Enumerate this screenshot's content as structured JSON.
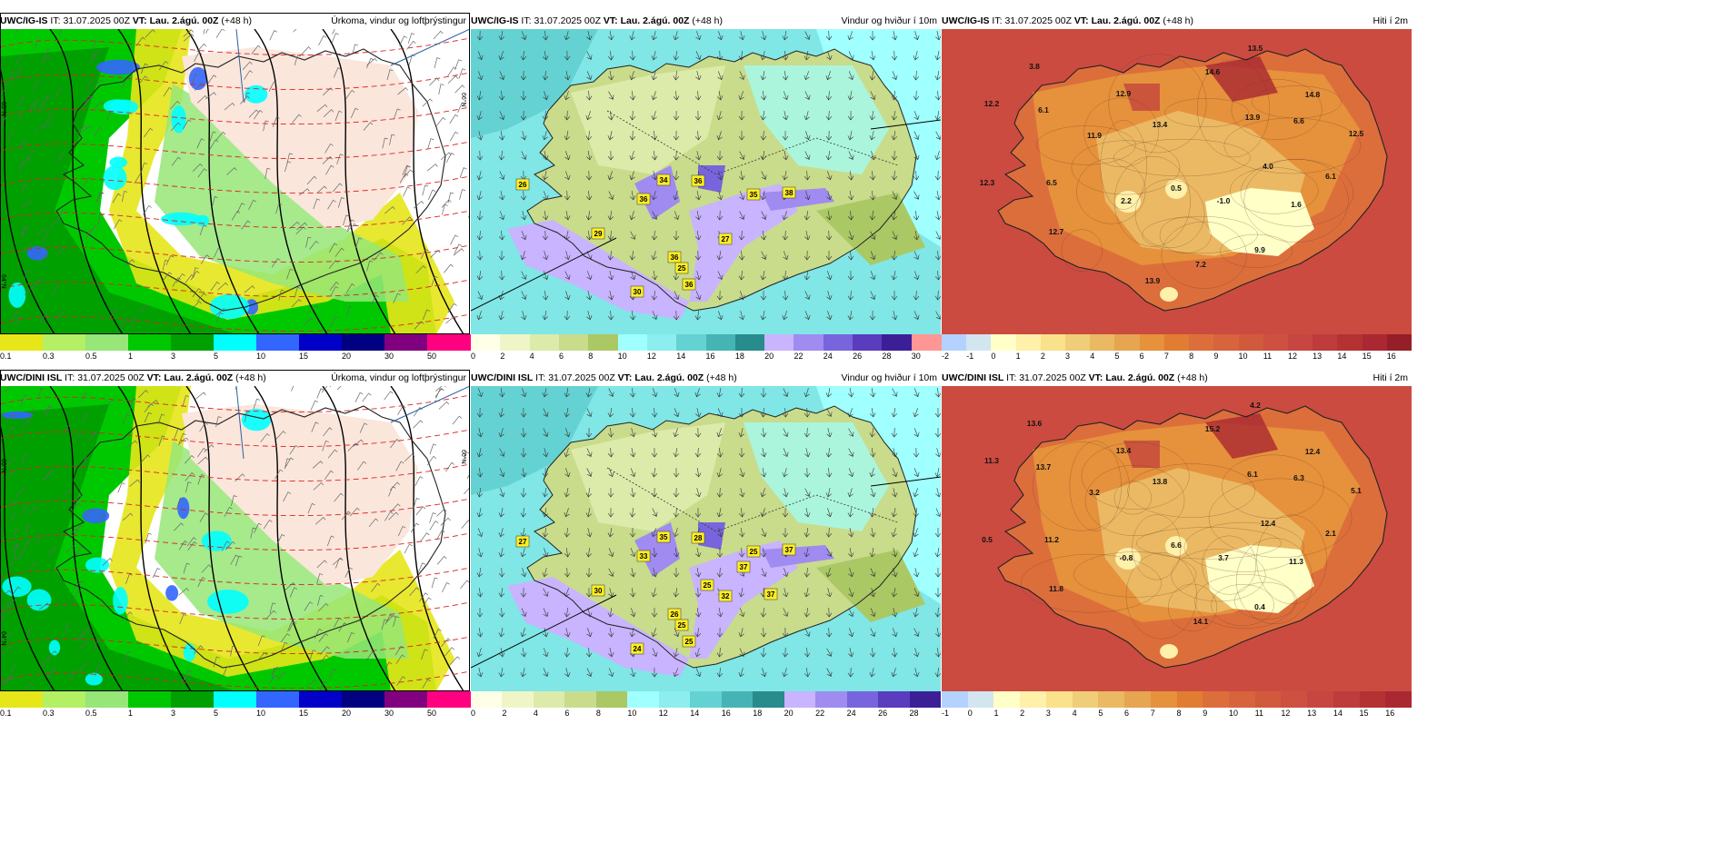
{
  "panels": [
    {
      "model": "UWC/IG-IS",
      "it_label": "IT:",
      "it_value": "31.07.2025 00Z",
      "vt_label": "VT:",
      "vt_value": "Lau. 2.ágú. 00Z",
      "lead": "(+48 h)",
      "title": "Úrkoma, vindur og loftþrýstingur",
      "kind": "precip",
      "colorbar": [
        "0.1",
        "0.3",
        "0.5",
        "1",
        "3",
        "5",
        "10",
        "15",
        "20",
        "30",
        "50"
      ],
      "labels": [],
      "lat_labels": [
        "65°N",
        "64°N",
        "66°N"
      ]
    },
    {
      "model": "UWC/IG-IS",
      "it_label": "IT:",
      "it_value": "31.07.2025 00Z",
      "vt_label": "VT:",
      "vt_value": "Lau. 2.ágú. 00Z",
      "lead": "(+48 h)",
      "title": "Vindur og hviður í 10m",
      "kind": "wind",
      "colorbar": [
        "0",
        "2",
        "4",
        "6",
        "8",
        "10",
        "12",
        "14",
        "16",
        "18",
        "20",
        "22",
        "24",
        "26",
        "28",
        "30"
      ],
      "labels": [
        "26",
        "34",
        "36",
        "36",
        "35",
        "38",
        "29",
        "27",
        "36",
        "25",
        "36",
        "30"
      ]
    },
    {
      "model": "UWC/IG-IS",
      "it_label": "IT:",
      "it_value": "31.07.2025 00Z",
      "vt_label": "VT:",
      "vt_value": "Lau. 2.ágú. 00Z",
      "lead": "(+48 h)",
      "title": "Hiti í 2m",
      "kind": "temp",
      "colorbar": [
        "-2",
        "-1",
        "0",
        "1",
        "2",
        "3",
        "4",
        "5",
        "6",
        "7",
        "8",
        "9",
        "10",
        "11",
        "12",
        "13",
        "14",
        "15",
        "16"
      ],
      "labels": [
        "13.5",
        "3.8",
        "14.6",
        "12.9",
        "14.8",
        "12.2",
        "6.1",
        "13.4",
        "13.9",
        "6.6",
        "11.9",
        "12.5",
        "4.0",
        "6.5",
        "0.5",
        "6.1",
        "12.3",
        "2.2",
        "-1.0",
        "1.6",
        "12.7",
        "9.9",
        "7.2",
        "13.9"
      ]
    },
    {
      "model": "UWC/DINI ISL",
      "it_label": "IT:",
      "it_value": "31.07.2025 00Z",
      "vt_label": "VT:",
      "vt_value": "Lau. 2.ágú. 00Z",
      "lead": "(+48 h)",
      "title": "Úrkoma, vindur og loftþrýstingur",
      "kind": "precip",
      "colorbar": [
        "0.1",
        "0.3",
        "0.5",
        "1",
        "3",
        "5",
        "10",
        "15",
        "20",
        "30",
        "50"
      ],
      "labels": [],
      "lat_labels": [
        "65°N",
        "64°N",
        "66°N"
      ]
    },
    {
      "model": "UWC/DINI ISL",
      "it_label": "IT:",
      "it_value": "31.07.2025 00Z",
      "vt_label": "VT:",
      "vt_value": "Lau. 2.ágú. 00Z",
      "lead": "(+48 h)",
      "title": "Vindur og hviður í 10m",
      "kind": "wind",
      "colorbar": [
        "0",
        "2",
        "4",
        "6",
        "8",
        "10",
        "12",
        "14",
        "16",
        "18",
        "20",
        "22",
        "24",
        "26",
        "28"
      ],
      "labels": [
        "27",
        "35",
        "33",
        "28",
        "25",
        "37",
        "30",
        "32",
        "26",
        "25",
        "25",
        "24",
        "37",
        "37",
        "25"
      ]
    },
    {
      "model": "UWC/DINI ISL",
      "it_label": "IT:",
      "it_value": "31.07.2025 00Z",
      "vt_label": "VT:",
      "vt_value": "Lau. 2.ágú. 00Z",
      "lead": "(+48 h)",
      "title": "Hiti í 2m",
      "kind": "temp",
      "colorbar": [
        "-1",
        "0",
        "1",
        "2",
        "3",
        "4",
        "5",
        "6",
        "7",
        "8",
        "9",
        "10",
        "11",
        "12",
        "13",
        "14",
        "15",
        "16"
      ],
      "labels": [
        "4.2",
        "13.6",
        "15.2",
        "13.4",
        "12.4",
        "11.3",
        "13.7",
        "13.8",
        "6.1",
        "6.3",
        "3.2",
        "5.1",
        "12.4",
        "11.2",
        "6.6",
        "2.1",
        "0.5",
        "-0.8",
        "3.7",
        "11.3",
        "11.8",
        "0.4",
        "14.1"
      ]
    }
  ],
  "colors": {
    "precip": [
      "#c8c800",
      "#e6e619",
      "#b4f064",
      "#96e678",
      "#00c800",
      "#00a000",
      "#00ffff",
      "#3366ff",
      "#0000c8",
      "#000080",
      "#800080",
      "#ff0080",
      "#ff0000"
    ],
    "wind": [
      "#ffffe8",
      "#f0f5c8",
      "#dcebaa",
      "#c8dc8c",
      "#aac864",
      "#a0ffff",
      "#8ceeee",
      "#64d2d2",
      "#46b4b4",
      "#288c8c",
      "#c8b4ff",
      "#a08cf0",
      "#7864dc",
      "#5a3cbe",
      "#3c1e96",
      "#ff9696",
      "#e66464",
      "#c83232",
      "#960000"
    ],
    "temp": [
      "#b4d2ff",
      "#d2e6f0",
      "#ffffc8",
      "#fff0aa",
      "#fae18c",
      "#f0cd78",
      "#ebb964",
      "#e6a550",
      "#e6913c",
      "#e17d32",
      "#dc6e3c",
      "#d7643c",
      "#d25a3c",
      "#cd5041",
      "#c84641",
      "#be3c3c",
      "#b43232",
      "#aa2832",
      "#961e28"
    ]
  }
}
